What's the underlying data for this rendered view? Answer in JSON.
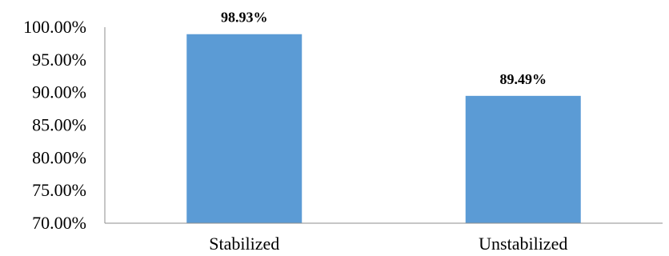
{
  "chart_data": {
    "type": "bar",
    "categories": [
      "Stabilized",
      "Unstabilized"
    ],
    "values": [
      98.93,
      89.49
    ],
    "data_labels": [
      "98.93%",
      "89.49%"
    ],
    "title": "",
    "xlabel": "",
    "ylabel": "",
    "ylim": [
      70,
      100
    ],
    "y_ticks": [
      70,
      75,
      80,
      85,
      90,
      95,
      100
    ],
    "y_tick_labels": [
      "70.00%",
      "75.00%",
      "80.00%",
      "85.00%",
      "90.00%",
      "95.00%",
      "100.00%"
    ],
    "grid": false,
    "legend": "none",
    "bar_color": "#5b9bd5",
    "axis_color": "#8c8c8c"
  }
}
